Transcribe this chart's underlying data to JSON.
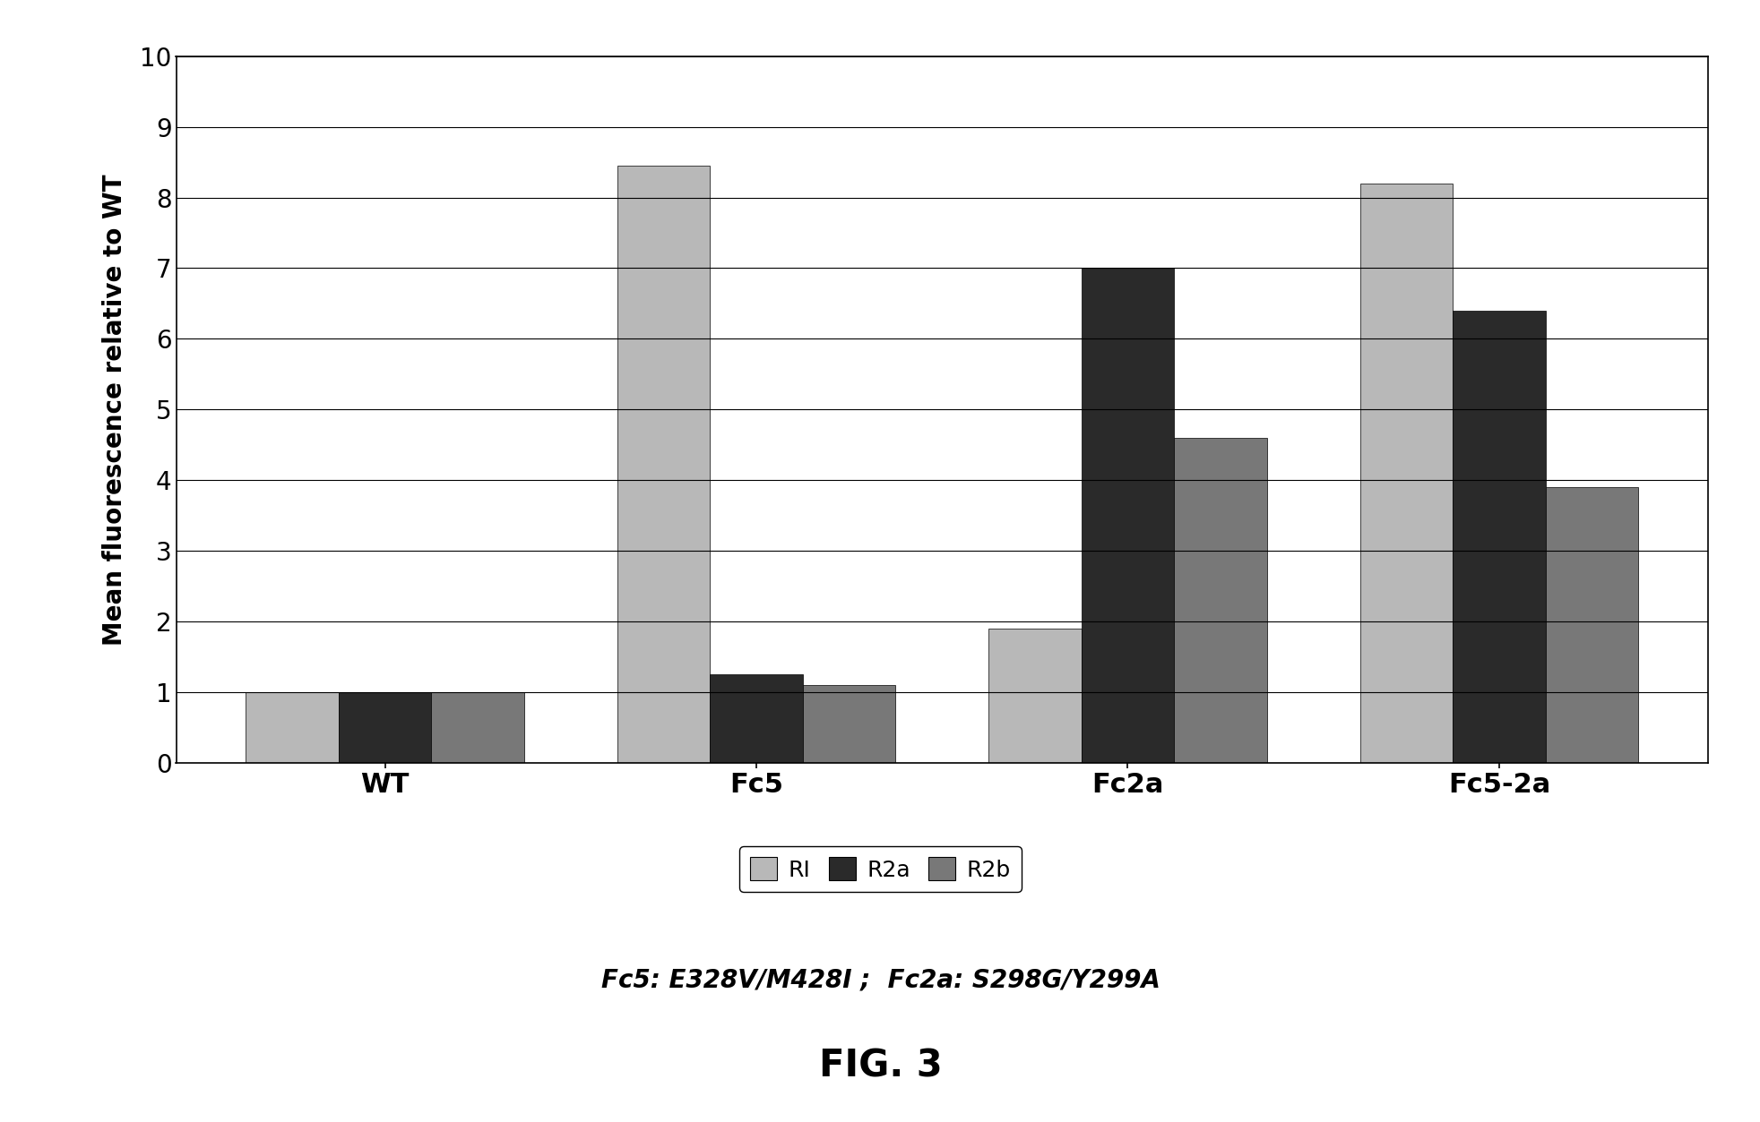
{
  "categories": [
    "WT",
    "Fc5",
    "Fc2a",
    "Fc5-2a"
  ],
  "series": {
    "RI": [
      1.0,
      8.45,
      1.9,
      8.2
    ],
    "R2a": [
      1.0,
      1.25,
      7.0,
      6.4
    ],
    "R2b": [
      1.0,
      1.1,
      4.6,
      3.9
    ]
  },
  "colors": {
    "RI": "#b8b8b8",
    "R2a": "#2a2a2a",
    "R2b": "#787878"
  },
  "hatches": {
    "RI": "....",
    "R2a": "....",
    "R2b": "...."
  },
  "ylabel": "Mean fluorescence relative to WT",
  "ylim": [
    0,
    10
  ],
  "yticks": [
    0,
    1,
    2,
    3,
    4,
    5,
    6,
    7,
    8,
    9,
    10
  ],
  "legend_labels": [
    "RI",
    "R2a",
    "R2b"
  ],
  "subtitle": "Fc5: E328V/M428I ;  Fc2a: S298G/Y299A",
  "fig_label": "FIG. 3",
  "background_color": "#ffffff",
  "bar_width": 0.25
}
